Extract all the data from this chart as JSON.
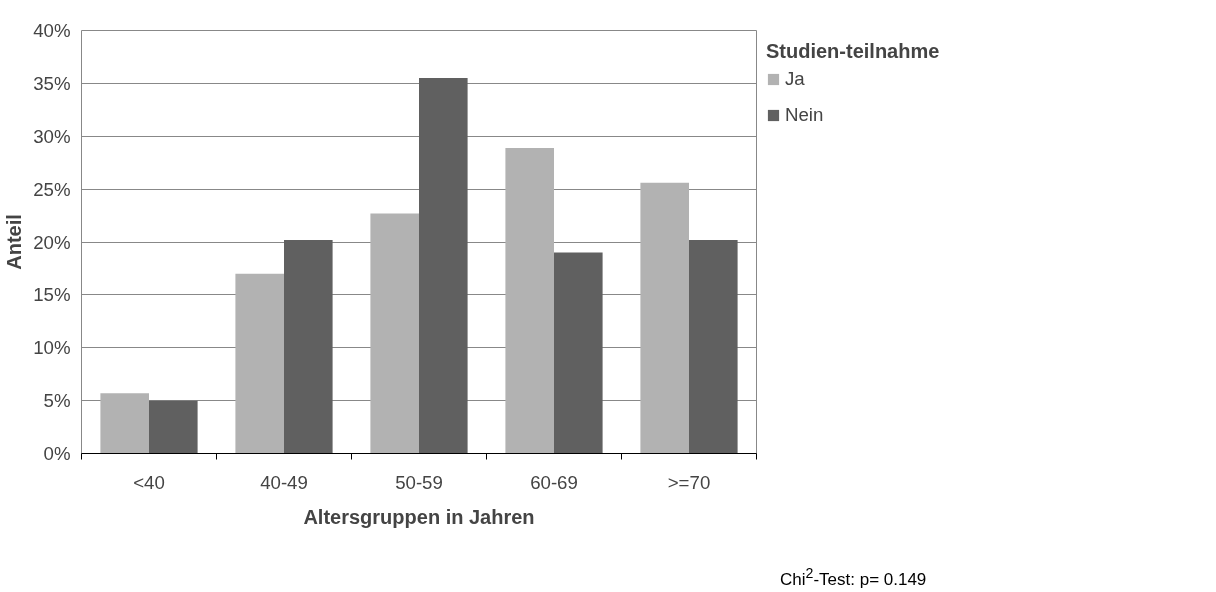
{
  "chart_data": {
    "type": "bar",
    "xlabel": "Altersgruppen in Jahren",
    "ylabel": "Anteil",
    "legend_title": "Studien-teilnahme",
    "categories": [
      "<40",
      "40-49",
      "50-59",
      "60-69",
      ">=70"
    ],
    "series": [
      {
        "name": "Ja",
        "color": "#b2b2b2",
        "values": [
          5.7,
          17.0,
          22.7,
          28.9,
          25.6
        ]
      },
      {
        "name": "Nein",
        "color": "#606060",
        "values": [
          5.0,
          20.2,
          35.5,
          19.0,
          20.2
        ]
      }
    ],
    "ylim": [
      0,
      40
    ],
    "yticks": [
      {
        "value": 0,
        "label": "0%"
      },
      {
        "value": 5,
        "label": "5%"
      },
      {
        "value": 10,
        "label": "10%"
      },
      {
        "value": 15,
        "label": "15%"
      },
      {
        "value": 20,
        "label": "20%"
      },
      {
        "value": 25,
        "label": "25%"
      },
      {
        "value": 30,
        "label": "30%"
      },
      {
        "value": 35,
        "label": "35%"
      },
      {
        "value": 40,
        "label": "40%"
      }
    ],
    "grid": "y",
    "legend": "right",
    "annotations": [
      "Chi$^{2}$-Test: p= 0.149"
    ]
  }
}
